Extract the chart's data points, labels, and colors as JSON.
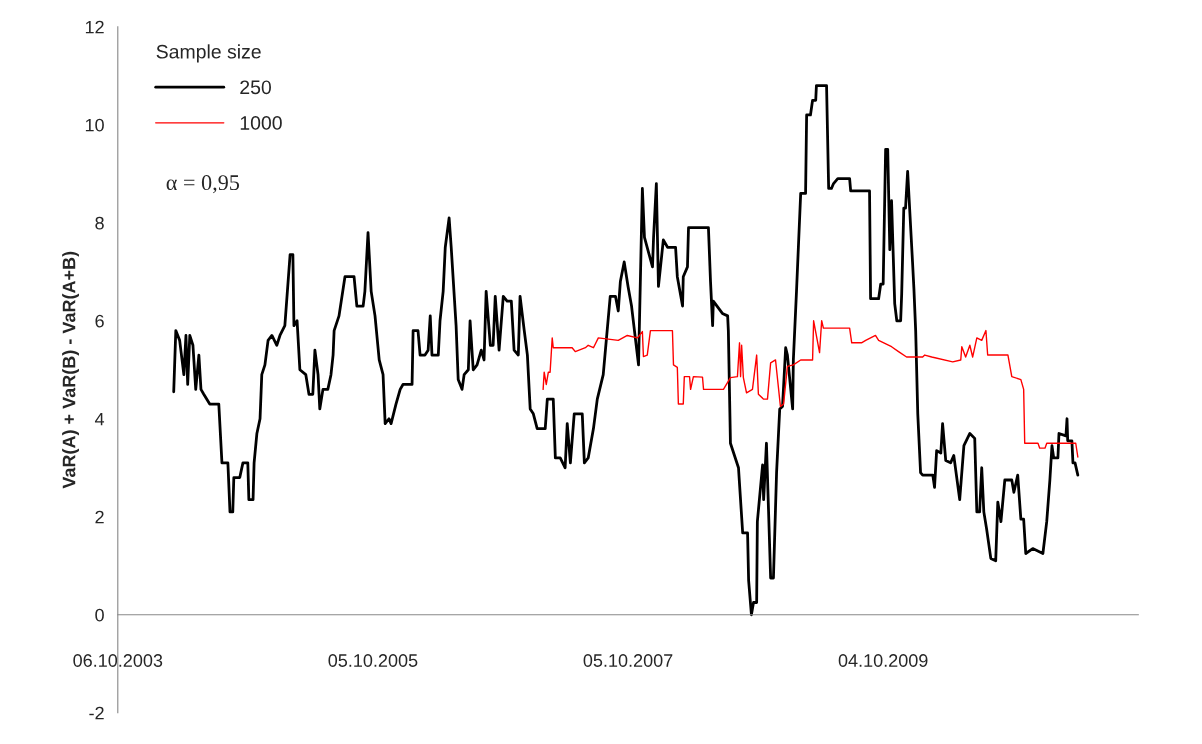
{
  "chart_data": {
    "type": "line",
    "ylabel": "VaR(A) + VaR(B) - VaR(A+B)",
    "legend_title": "Sample size",
    "legend": "top left",
    "grid": false,
    "marker": "none",
    "line_style": "solid",
    "xlim": [
      "2003-10-06",
      "2011-10-04"
    ],
    "xticks": [
      {
        "value": "2003-10-06",
        "label": "06.10.2003"
      },
      {
        "value": "2005-10-05",
        "label": "05.10.2005"
      },
      {
        "value": "2007-10-05",
        "label": "05.10.2007"
      },
      {
        "value": "2009-10-04",
        "label": "04.10.2009"
      }
    ],
    "ylim": [
      -2,
      12
    ],
    "yticks": [
      -2,
      0,
      2,
      4,
      6,
      8,
      10,
      12
    ],
    "annotations": [
      "α = 0,95"
    ],
    "series": [
      {
        "name": "250",
        "color": "#000000",
        "x": [
          "2004-03-14",
          "2004-03-20",
          "2004-03-31",
          "2004-04-12",
          "2004-04-18",
          "2004-04-23",
          "2004-04-29",
          "2004-05-08",
          "2004-05-16",
          "2004-05-25",
          "2004-05-31",
          "2004-06-08",
          "2004-06-25",
          "2004-07-21",
          "2004-07-30",
          "2004-08-16",
          "2004-08-22",
          "2004-08-30",
          "2004-09-02",
          "2004-09-19",
          "2004-09-28",
          "2004-10-12",
          "2004-10-15",
          "2004-10-27",
          "2004-10-30",
          "2004-11-07",
          "2004-11-16",
          "2004-11-21",
          "2004-11-30",
          "2004-12-09",
          "2004-12-20",
          "2005-01-03",
          "2005-01-12",
          "2005-01-26",
          "2005-02-10",
          "2005-02-18",
          "2005-02-21",
          "2005-03-02",
          "2005-03-10",
          "2005-03-27",
          "2005-04-05",
          "2005-04-16",
          "2005-04-22",
          "2005-05-01",
          "2005-05-06",
          "2005-05-15",
          "2005-05-29",
          "2005-06-07",
          "2005-06-13",
          "2005-06-16",
          "2005-06-30",
          "2005-07-17",
          "2005-08-12",
          "2005-08-20",
          "2005-09-07",
          "2005-09-12",
          "2005-09-21",
          "2005-09-30",
          "2005-10-11",
          "2005-10-23",
          "2005-11-03",
          "2005-11-09",
          "2005-11-20",
          "2005-11-26",
          "2005-12-10",
          "2005-12-22",
          "2005-12-30",
          "2006-01-25",
          "2006-01-28",
          "2006-02-11",
          "2006-02-17",
          "2006-03-03",
          "2006-03-12",
          "2006-03-18",
          "2006-03-23",
          "2006-04-10",
          "2006-04-15",
          "2006-04-24",
          "2006-04-30",
          "2006-05-11",
          "2006-05-17",
          "2006-05-31",
          "2006-06-06",
          "2006-06-17",
          "2006-06-23",
          "2006-07-05",
          "2006-07-10",
          "2006-07-19",
          "2006-07-30",
          "2006-08-11",
          "2006-08-19",
          "2006-08-25",
          "2006-09-06",
          "2006-09-14",
          "2006-09-20",
          "2006-10-01",
          "2006-10-13",
          "2006-10-24",
          "2006-11-05",
          "2006-11-13",
          "2006-11-25",
          "2006-11-30",
          "2006-12-12",
          "2006-12-21",
          "2006-12-29",
          "2007-01-07",
          "2007-01-18",
          "2007-02-10",
          "2007-02-16",
          "2007-03-05",
          "2007-03-11",
          "2007-03-25",
          "2007-04-08",
          "2007-04-14",
          "2007-04-23",
          "2007-05-04",
          "2007-05-27",
          "2007-06-02",
          "2007-06-13",
          "2007-06-28",
          "2007-07-09",
          "2007-07-26",
          "2007-08-15",
          "2007-08-30",
          "2007-09-07",
          "2007-09-13",
          "2007-09-24",
          "2007-10-05",
          "2007-10-15",
          "2007-11-04",
          "2007-11-15",
          "2007-11-21",
          "2007-12-14",
          "2007-12-17",
          "2007-12-25",
          "2007-12-31",
          "2008-01-14",
          "2008-01-26",
          "2008-02-18",
          "2008-02-23",
          "2008-03-09",
          "2008-03-11",
          "2008-03-23",
          "2008-03-26",
          "2008-05-22",
          "2008-05-28",
          "2008-06-03",
          "2008-06-05",
          "2008-07-01",
          "2008-07-16",
          "2008-07-18",
          "2008-07-24",
          "2008-08-16",
          "2008-08-28",
          "2008-09-11",
          "2008-09-14",
          "2008-09-22",
          "2008-09-28",
          "2008-10-07",
          "2008-10-09",
          "2008-10-24",
          "2008-10-27",
          "2008-11-04",
          "2008-11-16",
          "2008-11-24",
          "2008-12-03",
          "2008-12-12",
          "2008-12-20",
          "2008-12-29",
          "2009-01-03",
          "2009-01-18",
          "2009-01-20",
          "2009-01-29",
          "2009-02-10",
          "2009-02-24",
          "2009-02-27",
          "2009-03-10",
          "2009-03-16",
          "2009-03-25",
          "2009-03-27",
          "2009-04-25",
          "2009-05-01",
          "2009-05-09",
          "2009-05-15",
          "2009-05-27",
          "2009-06-30",
          "2009-07-03",
          "2009-08-26",
          "2009-08-29",
          "2009-09-21",
          "2009-09-27",
          "2009-10-04",
          "2009-10-11",
          "2009-10-17",
          "2009-10-23",
          "2009-10-28",
          "2009-11-06",
          "2009-11-12",
          "2009-11-23",
          "2009-11-26",
          "2009-12-02",
          "2009-12-07",
          "2009-12-13",
          "2009-12-27",
          "2009-12-31",
          "2010-01-05",
          "2010-01-11",
          "2010-01-19",
          "2010-01-25",
          "2010-02-23",
          "2010-02-28",
          "2010-03-06",
          "2010-03-18",
          "2010-03-23",
          "2010-04-01",
          "2010-04-15",
          "2010-04-24",
          "2010-05-11",
          "2010-05-23",
          "2010-06-09",
          "2010-06-23",
          "2010-06-29",
          "2010-07-07",
          "2010-07-13",
          "2010-07-19",
          "2010-07-27",
          "2010-08-08",
          "2010-08-22",
          "2010-08-28",
          "2010-09-06",
          "2010-09-17",
          "2010-10-07",
          "2010-10-13",
          "2010-10-24",
          "2010-11-02",
          "2010-11-10",
          "2010-11-16",
          "2010-12-06",
          "2011-01-04",
          "2011-01-15",
          "2011-01-24",
          "2011-01-30",
          "2011-02-04",
          "2011-02-16",
          "2011-02-19",
          "2011-03-11",
          "2011-03-14",
          "2011-03-16",
          "2011-03-28",
          "2011-03-31",
          "2011-04-06",
          "2011-04-14"
        ],
        "values": [
          4.55,
          5.8,
          5.6,
          4.9,
          5.7,
          4.7,
          5.7,
          5.5,
          4.6,
          5.3,
          4.6,
          4.5,
          4.3,
          4.3,
          3.1,
          3.1,
          2.1,
          2.1,
          2.8,
          2.8,
          3.1,
          3.1,
          2.35,
          2.35,
          3.1,
          3.7,
          4.0,
          4.9,
          5.1,
          5.6,
          5.7,
          5.5,
          5.7,
          5.9,
          7.35,
          7.35,
          5.9,
          6.0,
          5.0,
          4.9,
          4.5,
          4.5,
          5.4,
          4.9,
          4.2,
          4.6,
          4.6,
          4.9,
          5.3,
          5.8,
          6.1,
          6.9,
          6.9,
          6.3,
          6.3,
          6.6,
          7.8,
          6.6,
          6.1,
          5.2,
          4.9,
          3.9,
          4.0,
          3.9,
          4.3,
          4.6,
          4.7,
          4.7,
          5.8,
          5.8,
          5.3,
          5.3,
          5.4,
          6.1,
          5.3,
          5.3,
          6.0,
          6.6,
          7.5,
          8.1,
          7.5,
          5.9,
          4.8,
          4.6,
          4.9,
          5.0,
          6.0,
          5.0,
          5.1,
          5.4,
          5.2,
          6.6,
          5.5,
          5.5,
          6.5,
          5.4,
          6.5,
          6.4,
          6.4,
          5.4,
          5.3,
          6.5,
          5.8,
          5.3,
          4.2,
          4.1,
          3.8,
          3.8,
          4.4,
          4.4,
          3.2,
          3.2,
          3.0,
          3.9,
          3.1,
          4.1,
          4.1,
          3.1,
          3.2,
          3.8,
          4.4,
          4.9,
          6.5,
          6.5,
          6.2,
          6.8,
          7.2,
          6.7,
          6.3,
          5.1,
          8.7,
          7.7,
          7.1,
          7.7,
          8.8,
          6.7,
          7.65,
          7.5,
          7.5,
          6.9,
          6.3,
          6.9,
          7.1,
          7.9,
          7.9,
          6.8,
          5.9,
          6.4,
          6.15,
          6.1,
          5.8,
          3.5,
          3.0,
          1.67,
          1.67,
          0.7,
          0,
          0.25,
          0.25,
          1.9,
          3.06,
          2.35,
          3.5,
          0.75,
          0.75,
          2.9,
          4.2,
          4.25,
          5.45,
          5.3,
          4.2,
          5.2,
          6.6,
          8.6,
          8.6,
          10.2,
          10.2,
          10.5,
          10.5,
          10.8,
          10.8,
          8.7,
          8.7,
          8.8,
          8.9,
          8.9,
          8.65,
          8.65,
          6.45,
          6.45,
          6.75,
          6.75,
          9.5,
          9.5,
          7.45,
          8.45,
          6.35,
          6.0,
          6.0,
          6.55,
          8.3,
          8.3,
          9.05,
          7.2,
          6.65,
          5.8,
          4.1,
          2.9,
          2.85,
          2.85,
          2.6,
          3.35,
          3.3,
          3.9,
          3.15,
          3.1,
          3.25,
          2.35,
          3.45,
          3.7,
          3.6,
          2.1,
          2.1,
          3.0,
          2.1,
          1.75,
          1.15,
          1.1,
          2.3,
          1.9,
          2.75,
          2.75,
          2.5,
          2.85,
          1.95,
          1.95,
          1.25,
          1.35,
          1.25,
          1.9,
          2.75,
          3.45,
          3.2,
          3.2,
          3.7,
          3.65,
          4.0,
          3.55,
          3.55,
          3.1,
          3.1,
          2.85
        ]
      },
      {
        "name": "1000",
        "color": "#ff0000",
        "x": [
          "2007-02-04",
          "2007-02-07",
          "2007-02-13",
          "2007-02-19",
          "2007-02-24",
          "2007-03-02",
          "2007-03-05",
          "2007-04-28",
          "2007-05-07",
          "2007-06-05",
          "2007-06-13",
          "2007-06-28",
          "2007-07-12",
          "2007-09-07",
          "2007-10-03",
          "2007-11-01",
          "2007-11-15",
          "2007-11-18",
          "2007-11-29",
          "2007-12-08",
          "2008-02-09",
          "2008-02-12",
          "2008-02-23",
          "2008-02-26",
          "2008-03-11",
          "2008-03-14",
          "2008-03-29",
          "2008-04-01",
          "2008-04-09",
          "2008-05-05",
          "2008-05-08",
          "2008-07-04",
          "2008-07-24",
          "2008-08-13",
          "2008-08-19",
          "2008-08-22",
          "2008-08-25",
          "2008-08-30",
          "2008-09-08",
          "2008-09-25",
          "2008-10-07",
          "2008-10-12",
          "2008-10-27",
          "2008-11-07",
          "2008-11-16",
          "2008-11-30",
          "2008-12-14",
          "2008-12-23",
          "2009-01-03",
          "2009-01-20",
          "2009-02-10",
          "2009-03-16",
          "2009-03-19",
          "2009-04-05",
          "2009-04-11",
          "2009-04-16",
          "2009-06-30",
          "2009-07-06",
          "2009-08-03",
          "2009-08-15",
          "2009-09-12",
          "2009-09-21",
          "2009-10-28",
          "2009-11-17",
          "2009-12-10",
          "2010-01-25",
          "2010-01-31",
          "2010-02-20",
          "2010-04-21",
          "2010-05-14",
          "2010-05-17",
          "2010-05-28",
          "2010-06-09",
          "2010-06-17",
          "2010-06-29",
          "2010-07-13",
          "2010-07-25",
          "2010-07-30",
          "2010-09-26",
          "2010-10-07",
          "2010-11-02",
          "2010-11-10",
          "2010-11-13",
          "2010-12-21",
          "2010-12-26",
          "2011-01-10",
          "2011-01-15",
          "2011-04-08",
          "2011-04-14"
        ],
        "values": [
          4.6,
          4.95,
          4.7,
          4.95,
          4.95,
          5.65,
          5.45,
          5.45,
          5.37,
          5.45,
          5.5,
          5.45,
          5.65,
          5.6,
          5.7,
          5.65,
          5.78,
          5.27,
          5.3,
          5.8,
          5.8,
          5.1,
          5.05,
          4.3,
          4.3,
          4.86,
          4.86,
          4.6,
          4.86,
          4.85,
          4.6,
          4.6,
          4.84,
          4.86,
          5.55,
          4.86,
          5.5,
          4.84,
          4.53,
          4.6,
          5.3,
          4.5,
          4.4,
          4.4,
          5.14,
          5.2,
          4.25,
          4.3,
          5.07,
          5.1,
          5.2,
          5.2,
          6.0,
          5.35,
          6.0,
          5.85,
          5.85,
          5.55,
          5.55,
          5.6,
          5.7,
          5.6,
          5.47,
          5.37,
          5.26,
          5.26,
          5.3,
          5.26,
          5.16,
          5.2,
          5.47,
          5.26,
          5.5,
          5.26,
          5.65,
          5.6,
          5.8,
          5.3,
          5.3,
          4.86,
          4.8,
          4.6,
          3.5,
          3.5,
          3.4,
          3.4,
          3.5,
          3.5,
          3.22
        ]
      }
    ]
  }
}
